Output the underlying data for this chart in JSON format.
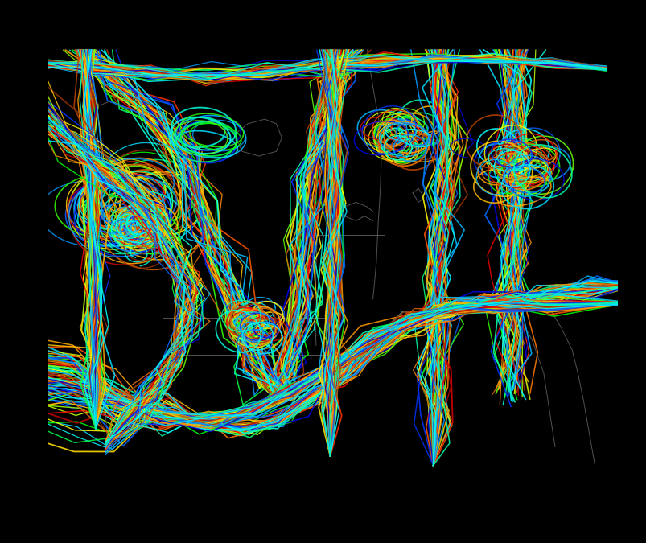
{
  "background_color": "#000000",
  "figure_width": 8.04,
  "figure_height": 6.75,
  "dpi": 100,
  "border_color": "#333333",
  "map_color": "#888888",
  "map_alpha": 0.6,
  "map_lw": 0.7,
  "n_members": 50,
  "lw_mean": 1.1,
  "lw_std": 0.15,
  "colors_rainbow": [
    "#0000dd",
    "#0033ff",
    "#0066ff",
    "#0099ff",
    "#00bbff",
    "#00ddff",
    "#00ffff",
    "#00ffdd",
    "#00ffaa",
    "#00ff77",
    "#00ff44",
    "#00ff00",
    "#33ff00",
    "#66ff00",
    "#99ff00",
    "#bbff00",
    "#ddff00",
    "#ffff00",
    "#ffdd00",
    "#ffbb00",
    "#ff9900",
    "#ff7700",
    "#ff5500",
    "#ff3300",
    "#ff0000",
    "#dd0000",
    "#bb0000",
    "#993300",
    "#bb4400",
    "#dd6600",
    "#ff8800",
    "#ffaa00",
    "#ffcc00"
  ],
  "seed": 12345
}
